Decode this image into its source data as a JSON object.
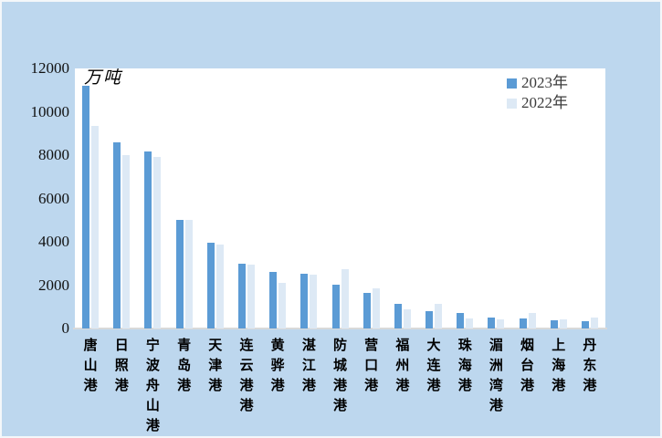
{
  "chart_data": {
    "type": "bar",
    "title": "",
    "unit_label": "万吨",
    "categories": [
      "唐山港",
      "日照港",
      "宁波舟山港",
      "青岛港",
      "天津港",
      "连云港港",
      "黄骅港",
      "湛江港",
      "防城港港",
      "营口港",
      "福州港",
      "大连港",
      "珠海港",
      "湄洲湾港",
      "烟台港",
      "上海港",
      "丹东港"
    ],
    "series": [
      {
        "name": "2023年",
        "color": "#5b9bd5",
        "values": [
          11200,
          8580,
          8160,
          5010,
          3940,
          3000,
          2600,
          2530,
          2040,
          1650,
          1130,
          780,
          700,
          520,
          450,
          390,
          330
        ]
      },
      {
        "name": "2022年",
        "color": "#dde9f5",
        "values": [
          9330,
          8020,
          7920,
          5030,
          3870,
          2930,
          2100,
          2480,
          2730,
          1860,
          900,
          1150,
          450,
          410,
          700,
          420,
          490
        ]
      }
    ],
    "xlabel": "",
    "ylabel": "",
    "ylim": [
      0,
      12000
    ],
    "yticks": [
      0,
      2000,
      4000,
      6000,
      8000,
      10000,
      12000
    ],
    "legend_position": "top-right",
    "grid": false
  },
  "colors": {
    "background": "#bdd7ee",
    "plot_background": "#ffffff",
    "axis_line": "#d9d9d9",
    "series_2023": "#5b9bd5",
    "series_2022": "#dde9f5",
    "text": "#000000"
  }
}
